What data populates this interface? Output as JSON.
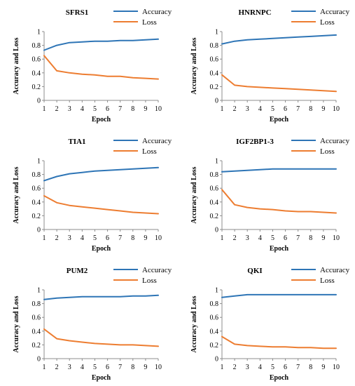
{
  "chart_data": [
    {
      "type": "line",
      "title": "SFRS1",
      "xlabel": "Epoch",
      "ylabel": "Accuracy and Loss",
      "x": [
        1,
        2,
        3,
        4,
        5,
        6,
        7,
        8,
        9,
        10
      ],
      "ylim": [
        0,
        1
      ],
      "yticks": [
        "0",
        "0.2",
        "0.4",
        "0.6",
        "0.8",
        "1"
      ],
      "legend_position": "top-right",
      "series": [
        {
          "name": "Accuracy",
          "color": "#2e75b6",
          "values": [
            0.73,
            0.8,
            0.84,
            0.85,
            0.86,
            0.86,
            0.87,
            0.87,
            0.88,
            0.89
          ]
        },
        {
          "name": "Loss",
          "color": "#ed7d31",
          "values": [
            0.65,
            0.43,
            0.4,
            0.38,
            0.37,
            0.35,
            0.35,
            0.33,
            0.32,
            0.31
          ]
        }
      ]
    },
    {
      "type": "line",
      "title": "HNRNPC",
      "xlabel": "Epoch",
      "ylabel": "Accuracy and Loss",
      "x": [
        1,
        2,
        3,
        4,
        5,
        6,
        7,
        8,
        9,
        10
      ],
      "ylim": [
        0,
        1
      ],
      "yticks": [
        "0",
        "0.2",
        "0.4",
        "0.6",
        "0.8",
        "1"
      ],
      "legend_position": "top-right",
      "series": [
        {
          "name": "Accuracy",
          "color": "#2e75b6",
          "values": [
            0.82,
            0.86,
            0.88,
            0.89,
            0.9,
            0.91,
            0.92,
            0.93,
            0.94,
            0.95
          ]
        },
        {
          "name": "Loss",
          "color": "#ed7d31",
          "values": [
            0.37,
            0.22,
            0.2,
            0.19,
            0.18,
            0.17,
            0.16,
            0.15,
            0.14,
            0.13
          ]
        }
      ]
    },
    {
      "type": "line",
      "title": "TIA1",
      "xlabel": "Epoch",
      "ylabel": "Accuracy and Loss",
      "x": [
        1,
        2,
        3,
        4,
        5,
        6,
        7,
        8,
        9,
        10
      ],
      "ylim": [
        0,
        1
      ],
      "yticks": [
        "0",
        "0.2",
        "0.4",
        "0.6",
        "0.8",
        "1"
      ],
      "legend_position": "top-right",
      "series": [
        {
          "name": "Accuracy",
          "color": "#2e75b6",
          "values": [
            0.71,
            0.77,
            0.81,
            0.83,
            0.85,
            0.86,
            0.87,
            0.88,
            0.89,
            0.9
          ]
        },
        {
          "name": "Loss",
          "color": "#ed7d31",
          "values": [
            0.49,
            0.39,
            0.35,
            0.33,
            0.31,
            0.29,
            0.27,
            0.25,
            0.24,
            0.23
          ]
        }
      ]
    },
    {
      "type": "line",
      "title": "IGF2BP1-3",
      "xlabel": "Epoch",
      "ylabel": "Accuracy and Loss",
      "x": [
        1,
        2,
        3,
        4,
        5,
        6,
        7,
        8,
        9,
        10
      ],
      "ylim": [
        0,
        1
      ],
      "yticks": [
        "0",
        "0.2",
        "0.4",
        "0.6",
        "0.8",
        "1"
      ],
      "legend_position": "top-right",
      "series": [
        {
          "name": "Accuracy",
          "color": "#2e75b6",
          "values": [
            0.84,
            0.85,
            0.86,
            0.87,
            0.88,
            0.88,
            0.88,
            0.88,
            0.88,
            0.88
          ]
        },
        {
          "name": "Loss",
          "color": "#ed7d31",
          "values": [
            0.58,
            0.36,
            0.32,
            0.3,
            0.29,
            0.27,
            0.26,
            0.26,
            0.25,
            0.24
          ]
        }
      ]
    },
    {
      "type": "line",
      "title": "PUM2",
      "xlabel": "Epoch",
      "ylabel": "Accuracy and Loss",
      "x": [
        1,
        2,
        3,
        4,
        5,
        6,
        7,
        8,
        9,
        10
      ],
      "ylim": [
        0,
        1
      ],
      "yticks": [
        "0",
        "0.2",
        "0.4",
        "0.6",
        "0.8",
        "1"
      ],
      "legend_position": "top-right",
      "series": [
        {
          "name": "Accuracy",
          "color": "#2e75b6",
          "values": [
            0.86,
            0.88,
            0.89,
            0.9,
            0.9,
            0.9,
            0.9,
            0.91,
            0.91,
            0.92
          ]
        },
        {
          "name": "Loss",
          "color": "#ed7d31",
          "values": [
            0.43,
            0.29,
            0.26,
            0.24,
            0.22,
            0.21,
            0.2,
            0.2,
            0.19,
            0.18
          ]
        }
      ]
    },
    {
      "type": "line",
      "title": "QKI",
      "xlabel": "Epoch",
      "ylabel": "Accuracy and Loss",
      "x": [
        1,
        2,
        3,
        4,
        5,
        6,
        7,
        8,
        9,
        10
      ],
      "ylim": [
        0,
        1
      ],
      "yticks": [
        "0",
        "0.2",
        "0.4",
        "0.6",
        "0.8",
        "1"
      ],
      "legend_position": "top-right",
      "series": [
        {
          "name": "Accuracy",
          "color": "#2e75b6",
          "values": [
            0.89,
            0.91,
            0.93,
            0.93,
            0.93,
            0.93,
            0.93,
            0.93,
            0.93,
            0.93
          ]
        },
        {
          "name": "Loss",
          "color": "#ed7d31",
          "values": [
            0.32,
            0.21,
            0.19,
            0.18,
            0.17,
            0.17,
            0.16,
            0.16,
            0.15,
            0.15
          ]
        }
      ]
    }
  ]
}
